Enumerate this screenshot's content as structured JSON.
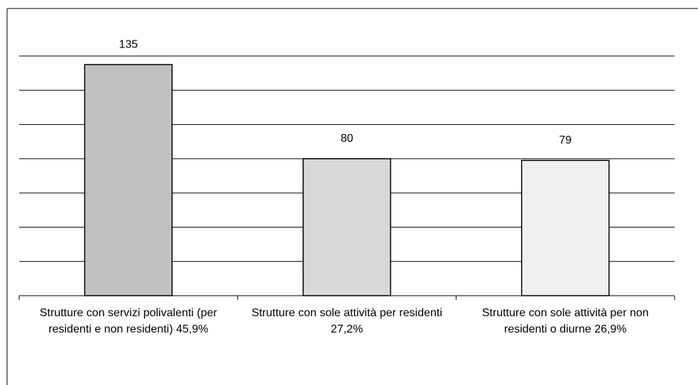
{
  "chart_data": {
    "type": "bar",
    "categories": [
      "Strutture con servizi polivalenti (per residenti e non residenti) 45,9%",
      "Strutture con sole attività per residenti 27,2%",
      "Strutture con sole attività per non residenti o diurne 26,9%"
    ],
    "values": [
      135,
      80,
      79
    ],
    "colors": [
      "#c0c0c0",
      "#d8d8d8",
      "#f0f0f0"
    ],
    "ylim": [
      0,
      140
    ],
    "yticks": [
      0,
      20,
      40,
      60,
      80,
      100,
      120,
      140
    ],
    "grid": true
  }
}
